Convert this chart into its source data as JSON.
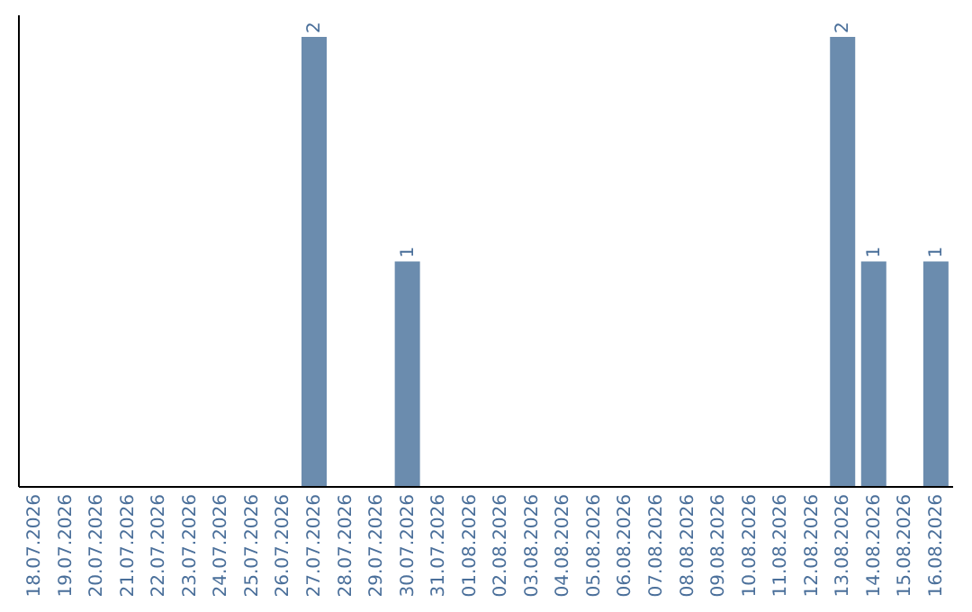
{
  "chart_data": {
    "type": "bar",
    "categories": [
      "18.07.2026",
      "19.07.2026",
      "20.07.2026",
      "21.07.2026",
      "22.07.2026",
      "23.07.2026",
      "24.07.2026",
      "25.07.2026",
      "26.07.2026",
      "27.07.2026",
      "28.07.2026",
      "29.07.2026",
      "30.07.2026",
      "31.07.2026",
      "01.08.2026",
      "02.08.2026",
      "03.08.2026",
      "04.08.2026",
      "05.08.2026",
      "06.08.2026",
      "07.08.2026",
      "08.08.2026",
      "09.08.2026",
      "10.08.2026",
      "11.08.2026",
      "12.08.2026",
      "13.08.2026",
      "14.08.2026",
      "15.08.2026",
      "16.08.2026"
    ],
    "values": [
      0,
      0,
      0,
      0,
      0,
      0,
      0,
      0,
      0,
      2,
      0,
      0,
      1,
      0,
      0,
      0,
      0,
      0,
      0,
      0,
      0,
      0,
      0,
      0,
      0,
      0,
      2,
      1,
      0,
      1
    ],
    "value_labels": [
      null,
      null,
      null,
      null,
      null,
      null,
      null,
      null,
      null,
      "2",
      null,
      null,
      "1",
      null,
      null,
      null,
      null,
      null,
      null,
      null,
      null,
      null,
      null,
      null,
      null,
      null,
      "2",
      "1",
      null,
      "1"
    ],
    "color": "#6b8cae",
    "ylim": [
      0,
      2.1
    ],
    "tick_labels": "x",
    "grid": false
  }
}
